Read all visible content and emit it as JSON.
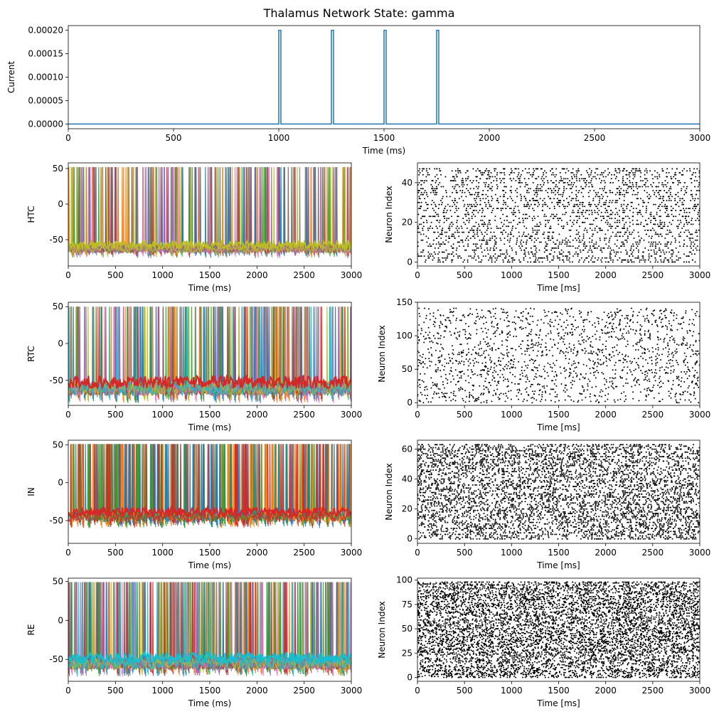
{
  "figure": {
    "title": "Thalamus Network State: gamma"
  },
  "chart_data": [
    {
      "id": "current",
      "type": "line",
      "xlabel": "Time (ms)",
      "ylabel": "Current",
      "xlim": [
        0,
        3000
      ],
      "ylim": [
        -1e-05,
        0.00021
      ],
      "xticks": [
        0,
        500,
        1000,
        1500,
        2000,
        2500,
        3000
      ],
      "yticks": [
        "0.00000",
        "0.00005",
        "0.00010",
        "0.00015",
        "0.00020"
      ],
      "ytick_values": [
        0,
        5e-05,
        0.0001,
        0.00015,
        0.0002
      ],
      "line_color": "#1f77b4",
      "pulses": [
        {
          "start": 1000,
          "end": 1010,
          "amplitude": 0.0002
        },
        {
          "start": 1250,
          "end": 1260,
          "amplitude": 0.0002
        },
        {
          "start": 1500,
          "end": 1510,
          "amplitude": 0.0002
        },
        {
          "start": 1750,
          "end": 1760,
          "amplitude": 0.0002
        }
      ],
      "baseline": 0
    },
    {
      "id": "htc-voltage",
      "type": "line",
      "ylabel": "HTC",
      "xlabel": "Time (ms)",
      "xlim": [
        0,
        3000
      ],
      "ylim": [
        -87,
        58
      ],
      "xticks": [
        0,
        500,
        1000,
        1500,
        2000,
        2500,
        3000
      ],
      "yticks": [
        -50,
        0,
        50
      ],
      "spike_peak": 52,
      "rest_low": -73,
      "rest_high": -50,
      "palette": [
        "#1f77b4",
        "#ff7f0e",
        "#2ca02c",
        "#d62728",
        "#9467bd",
        "#8c564b",
        "#e377c2",
        "#7f7f7f",
        "#bcbd22"
      ],
      "top_color": "#bcbd22",
      "spike_count": 260
    },
    {
      "id": "htc-raster",
      "type": "scatter",
      "xlabel": "Time [ms]",
      "ylabel": "Neuron Index",
      "xlim": [
        0,
        3000
      ],
      "ylim": [
        -2,
        50
      ],
      "xticks": [
        0,
        500,
        1000,
        1500,
        2000,
        2500,
        3000
      ],
      "yticks": [
        0,
        20,
        40
      ],
      "n_neurons": 48,
      "n_spikes": 2600,
      "color": "#000000"
    },
    {
      "id": "rtc-voltage",
      "type": "line",
      "ylabel": "RTC",
      "xlabel": "Time (ms)",
      "xlim": [
        0,
        3000
      ],
      "ylim": [
        -84,
        56
      ],
      "xticks": [
        0,
        500,
        1000,
        1500,
        2000,
        2500,
        3000
      ],
      "yticks": [
        -50,
        0,
        50
      ],
      "spike_peak": 50,
      "rest_low": -78,
      "rest_high": -40,
      "palette": [
        "#1f77b4",
        "#ff7f0e",
        "#2ca02c",
        "#d62728",
        "#9467bd",
        "#8c564b",
        "#e377c2",
        "#7f7f7f",
        "#bcbd22",
        "#17becf"
      ],
      "top_color": "#d62728",
      "spike_count": 300
    },
    {
      "id": "rtc-raster",
      "type": "scatter",
      "xlabel": "Time [ms]",
      "ylabel": "Neuron Index",
      "xlim": [
        0,
        3000
      ],
      "ylim": [
        -4,
        150
      ],
      "xticks": [
        0,
        500,
        1000,
        1500,
        2000,
        2500,
        3000
      ],
      "yticks": [
        0,
        50,
        100,
        150
      ],
      "n_neurons": 142,
      "n_spikes": 1700,
      "color": "#000000"
    },
    {
      "id": "in-voltage",
      "type": "line",
      "ylabel": "IN",
      "xlabel": "Time (ms)",
      "xlim": [
        0,
        3000
      ],
      "ylim": [
        -80,
        56
      ],
      "xticks": [
        0,
        500,
        1000,
        1500,
        2000,
        2500,
        3000
      ],
      "yticks": [
        -50,
        0,
        50
      ],
      "spike_peak": 51,
      "rest_low": -57,
      "rest_high": -30,
      "palette": [
        "#1f77b4",
        "#ff7f0e",
        "#2ca02c",
        "#d62728"
      ],
      "top_color": "#d62728",
      "spike_count": 420
    },
    {
      "id": "in-raster",
      "type": "scatter",
      "xlabel": "Time [ms]",
      "ylabel": "Neuron Index",
      "xlim": [
        0,
        3000
      ],
      "ylim": [
        -3,
        66
      ],
      "xticks": [
        0,
        500,
        1000,
        1500,
        2000,
        2500,
        3000
      ],
      "yticks": [
        0,
        20,
        40,
        60
      ],
      "n_neurons": 64,
      "n_spikes": 5200,
      "color": "#000000"
    },
    {
      "id": "re-voltage",
      "type": "line",
      "ylabel": "RE",
      "xlabel": "Time (ms)",
      "xlim": [
        0,
        3000
      ],
      "ylim": [
        -78,
        54
      ],
      "xticks": [
        0,
        500,
        1000,
        1500,
        2000,
        2500,
        3000
      ],
      "yticks": [
        -50,
        0,
        50
      ],
      "spike_peak": 49,
      "rest_low": -69,
      "rest_high": -38,
      "palette": [
        "#1f77b4",
        "#ff7f0e",
        "#2ca02c",
        "#d62728",
        "#9467bd",
        "#8c564b",
        "#e377c2",
        "#7f7f7f",
        "#bcbd22",
        "#17becf"
      ],
      "top_color": "#17becf",
      "spike_count": 380
    },
    {
      "id": "re-raster",
      "type": "scatter",
      "xlabel": "Time [ms]",
      "ylabel": "Neuron Index",
      "xlim": [
        0,
        3000
      ],
      "ylim": [
        -4,
        102
      ],
      "xticks": [
        0,
        500,
        1000,
        1500,
        2000,
        2500,
        3000
      ],
      "yticks": [
        0,
        25,
        50,
        75,
        100
      ],
      "n_neurons": 99,
      "n_spikes": 7000,
      "color": "#000000"
    }
  ]
}
